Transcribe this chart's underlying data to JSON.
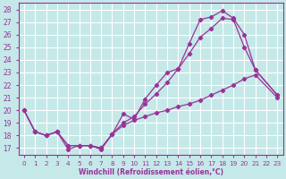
{
  "xlabel": "Windchill (Refroidissement éolien,°C)",
  "bg_color": "#c5e8e8",
  "grid_color": "#ffffff",
  "line_color": "#993399",
  "xlim": [
    -0.5,
    23.5
  ],
  "ylim": [
    16.5,
    28.5
  ],
  "yticks": [
    17,
    18,
    19,
    20,
    21,
    22,
    23,
    24,
    25,
    26,
    27,
    28
  ],
  "xticks": [
    0,
    1,
    2,
    3,
    4,
    5,
    6,
    7,
    8,
    9,
    10,
    11,
    12,
    13,
    14,
    15,
    16,
    17,
    18,
    19,
    20,
    21,
    22,
    23
  ],
  "line1_x": [
    0,
    1,
    2,
    3,
    4,
    5,
    6,
    7,
    8,
    9,
    10,
    11,
    12,
    13,
    14,
    15,
    16,
    17,
    18,
    19,
    20,
    21,
    23
  ],
  "line1_y": [
    20.0,
    18.3,
    18.0,
    18.3,
    16.9,
    17.2,
    17.2,
    16.9,
    18.1,
    19.7,
    19.3,
    20.9,
    22.0,
    23.0,
    23.3,
    25.3,
    27.2,
    27.4,
    27.9,
    27.3,
    26.0,
    23.2,
    21.2
  ],
  "line2_x": [
    0,
    1,
    2,
    3,
    4,
    5,
    6,
    7,
    8,
    9,
    10,
    11,
    12,
    13,
    14,
    15,
    16,
    17,
    18,
    19,
    20,
    21,
    23
  ],
  "line2_y": [
    20.0,
    18.3,
    18.0,
    18.3,
    17.2,
    17.2,
    17.2,
    17.0,
    18.1,
    19.0,
    19.5,
    20.5,
    21.3,
    22.2,
    23.3,
    24.5,
    25.8,
    26.5,
    27.3,
    27.2,
    25.0,
    23.2,
    21.2
  ],
  "line3_x": [
    0,
    1,
    2,
    3,
    4,
    5,
    6,
    7,
    8,
    9,
    10,
    11,
    12,
    13,
    14,
    15,
    16,
    17,
    18,
    19,
    20,
    21,
    23
  ],
  "line3_y": [
    20.0,
    18.3,
    18.0,
    18.3,
    17.2,
    17.2,
    17.2,
    17.0,
    18.1,
    18.8,
    19.2,
    19.5,
    19.8,
    20.0,
    20.3,
    20.5,
    20.8,
    21.2,
    21.6,
    22.0,
    22.5,
    22.8,
    21.0
  ]
}
